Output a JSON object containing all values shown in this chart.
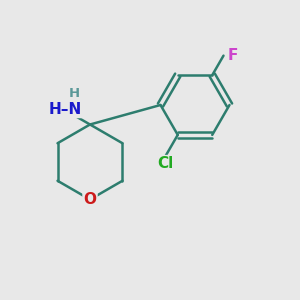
{
  "background_color": "#e8e8e8",
  "bond_color": "#2d7d6e",
  "bond_width": 1.8,
  "atom_colors": {
    "N": "#1a1acc",
    "O": "#cc1a1a",
    "Cl": "#22aa22",
    "F": "#cc44cc",
    "H": "#5a9898",
    "C": "#2d7d6e"
  },
  "font_size_large": 11,
  "font_size_small": 9.5
}
